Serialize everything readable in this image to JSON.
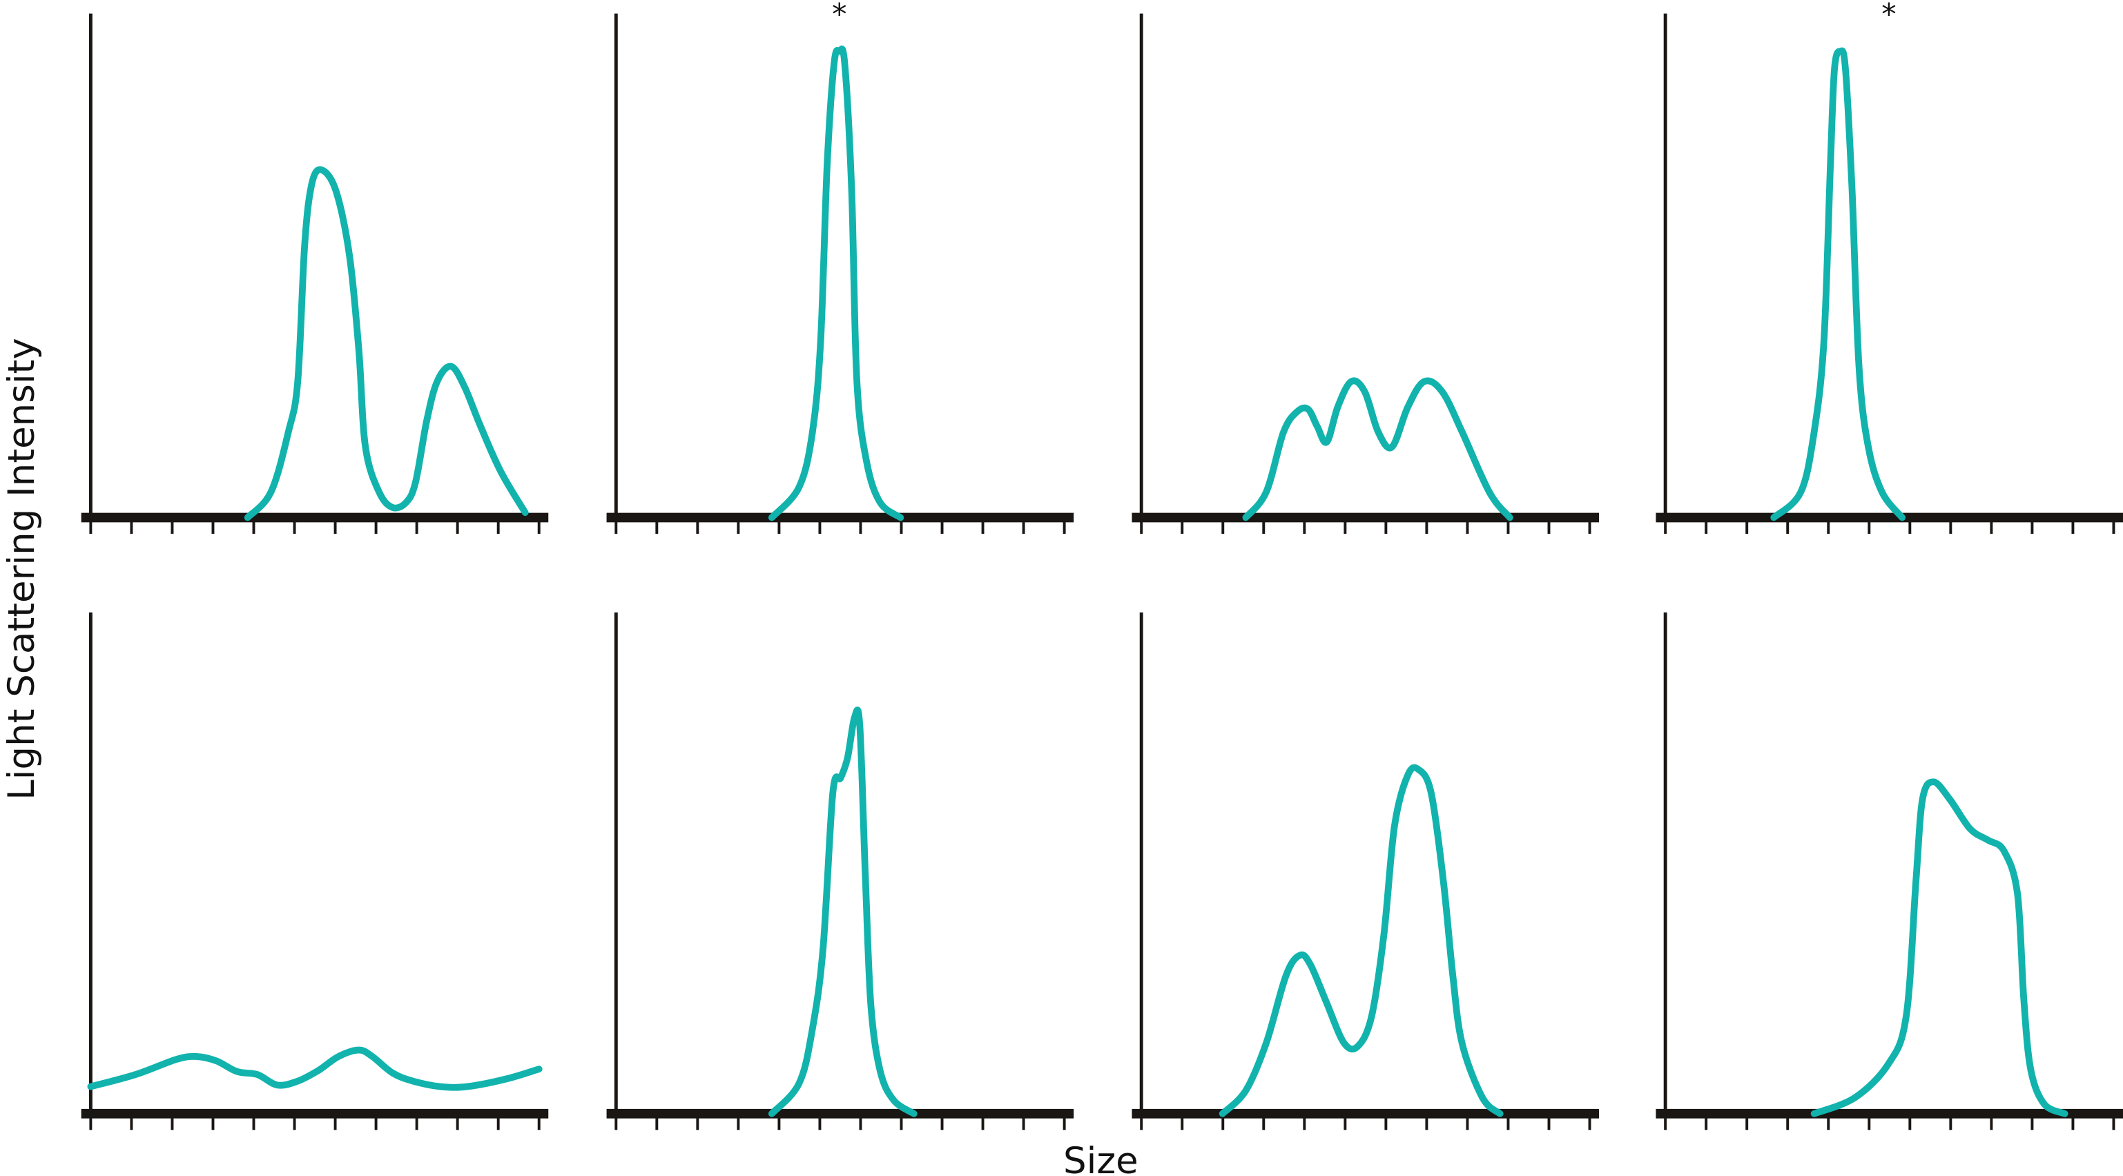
{
  "chart_data": {
    "type": "line",
    "layout": "2x4 grid of panels",
    "xlabel": "Size",
    "ylabel": "Light Scattering Intensity",
    "x_ticks_per_panel": 12,
    "x_tick_labels": [],
    "y_tick_labels": [],
    "grid": false,
    "line_color": "#12b3ad",
    "axis_color": "#1a1614",
    "xlim": [
      0,
      11
    ],
    "ylim": [
      0,
      1
    ],
    "panels": [
      {
        "row": 1,
        "col": 1,
        "marker": "",
        "points": [
          [
            3.85,
            0
          ],
          [
            4.42,
            0.05
          ],
          [
            4.85,
            0.17
          ],
          [
            5.08,
            0.27
          ],
          [
            5.25,
            0.54
          ],
          [
            5.42,
            0.66
          ],
          [
            5.65,
            0.69
          ],
          [
            6.01,
            0.65
          ],
          [
            6.35,
            0.52
          ],
          [
            6.58,
            0.33
          ],
          [
            6.74,
            0.14
          ],
          [
            7.08,
            0.05
          ],
          [
            7.41,
            0.02
          ],
          [
            7.74,
            0.03
          ],
          [
            7.97,
            0.07
          ],
          [
            8.24,
            0.19
          ],
          [
            8.5,
            0.27
          ],
          [
            8.84,
            0.3
          ],
          [
            9.17,
            0.26
          ],
          [
            9.57,
            0.18
          ],
          [
            10.07,
            0.09
          ],
          [
            10.66,
            0.01
          ]
        ]
      },
      {
        "row": 1,
        "col": 2,
        "marker": "*",
        "points": [
          [
            3.82,
            0
          ],
          [
            4.49,
            0.06
          ],
          [
            4.82,
            0.17
          ],
          [
            5.02,
            0.35
          ],
          [
            5.18,
            0.7
          ],
          [
            5.35,
            0.9
          ],
          [
            5.48,
            0.925
          ],
          [
            5.61,
            0.9
          ],
          [
            5.78,
            0.65
          ],
          [
            5.91,
            0.27
          ],
          [
            6.15,
            0.11
          ],
          [
            6.48,
            0.03
          ],
          [
            6.98,
            0
          ]
        ]
      },
      {
        "row": 1,
        "col": 3,
        "marker": "",
        "points": [
          [
            2.56,
            0
          ],
          [
            3.06,
            0.05
          ],
          [
            3.49,
            0.17
          ],
          [
            3.82,
            0.21
          ],
          [
            4.09,
            0.215
          ],
          [
            4.32,
            0.18
          ],
          [
            4.55,
            0.15
          ],
          [
            4.82,
            0.22
          ],
          [
            5.15,
            0.27
          ],
          [
            5.48,
            0.25
          ],
          [
            5.81,
            0.17
          ],
          [
            6.15,
            0.14
          ],
          [
            6.54,
            0.22
          ],
          [
            6.94,
            0.27
          ],
          [
            7.38,
            0.25
          ],
          [
            7.87,
            0.17
          ],
          [
            8.54,
            0.05
          ],
          [
            9.04,
            0
          ]
        ]
      },
      {
        "row": 1,
        "col": 4,
        "marker": "*",
        "points": [
          [
            2.66,
            0
          ],
          [
            3.32,
            0.05
          ],
          [
            3.65,
            0.17
          ],
          [
            3.89,
            0.35
          ],
          [
            4.05,
            0.7
          ],
          [
            4.15,
            0.89
          ],
          [
            4.29,
            0.925
          ],
          [
            4.42,
            0.89
          ],
          [
            4.58,
            0.65
          ],
          [
            4.75,
            0.3
          ],
          [
            4.98,
            0.14
          ],
          [
            5.32,
            0.05
          ],
          [
            5.81,
            0
          ]
        ]
      },
      {
        "row": 2,
        "col": 1,
        "marker": "",
        "points": [
          [
            0,
            0.054
          ],
          [
            1.1,
            0.078
          ],
          [
            2.09,
            0.108
          ],
          [
            2.59,
            0.114
          ],
          [
            3.09,
            0.105
          ],
          [
            3.59,
            0.084
          ],
          [
            4.09,
            0.078
          ],
          [
            4.58,
            0.057
          ],
          [
            5.08,
            0.065
          ],
          [
            5.58,
            0.086
          ],
          [
            6.08,
            0.114
          ],
          [
            6.58,
            0.127
          ],
          [
            6.91,
            0.114
          ],
          [
            7.41,
            0.081
          ],
          [
            7.91,
            0.065
          ],
          [
            8.57,
            0.054
          ],
          [
            9.24,
            0.054
          ],
          [
            10.23,
            0.07
          ],
          [
            11.0,
            0.089
          ]
        ]
      },
      {
        "row": 2,
        "col": 2,
        "marker": "",
        "points": [
          [
            3.82,
            0
          ],
          [
            4.49,
            0.06
          ],
          [
            4.82,
            0.17
          ],
          [
            5.08,
            0.33
          ],
          [
            5.32,
            0.64
          ],
          [
            5.51,
            0.67
          ],
          [
            5.68,
            0.71
          ],
          [
            5.85,
            0.79
          ],
          [
            5.98,
            0.775
          ],
          [
            6.11,
            0.49
          ],
          [
            6.25,
            0.22
          ],
          [
            6.48,
            0.086
          ],
          [
            6.81,
            0.027
          ],
          [
            7.31,
            0
          ]
        ]
      },
      {
        "row": 2,
        "col": 3,
        "marker": "",
        "points": [
          [
            1.99,
            0
          ],
          [
            2.56,
            0.046
          ],
          [
            3.06,
            0.14
          ],
          [
            3.55,
            0.276
          ],
          [
            3.89,
            0.316
          ],
          [
            4.15,
            0.297
          ],
          [
            4.55,
            0.22
          ],
          [
            4.98,
            0.14
          ],
          [
            5.32,
            0.135
          ],
          [
            5.65,
            0.195
          ],
          [
            5.95,
            0.357
          ],
          [
            6.21,
            0.573
          ],
          [
            6.54,
            0.676
          ],
          [
            6.81,
            0.686
          ],
          [
            7.11,
            0.64
          ],
          [
            7.41,
            0.465
          ],
          [
            7.64,
            0.276
          ],
          [
            7.87,
            0.14
          ],
          [
            8.37,
            0.032
          ],
          [
            8.8,
            0
          ]
        ]
      },
      {
        "row": 2,
        "col": 4,
        "marker": "",
        "points": [
          [
            3.65,
            0
          ],
          [
            4.65,
            0.032
          ],
          [
            5.48,
            0.1
          ],
          [
            5.91,
            0.195
          ],
          [
            6.15,
            0.465
          ],
          [
            6.31,
            0.627
          ],
          [
            6.58,
            0.662
          ],
          [
            6.98,
            0.627
          ],
          [
            7.48,
            0.568
          ],
          [
            7.91,
            0.546
          ],
          [
            8.31,
            0.524
          ],
          [
            8.64,
            0.438
          ],
          [
            8.8,
            0.222
          ],
          [
            8.97,
            0.086
          ],
          [
            9.3,
            0.019
          ],
          [
            9.8,
            0
          ]
        ]
      }
    ]
  }
}
